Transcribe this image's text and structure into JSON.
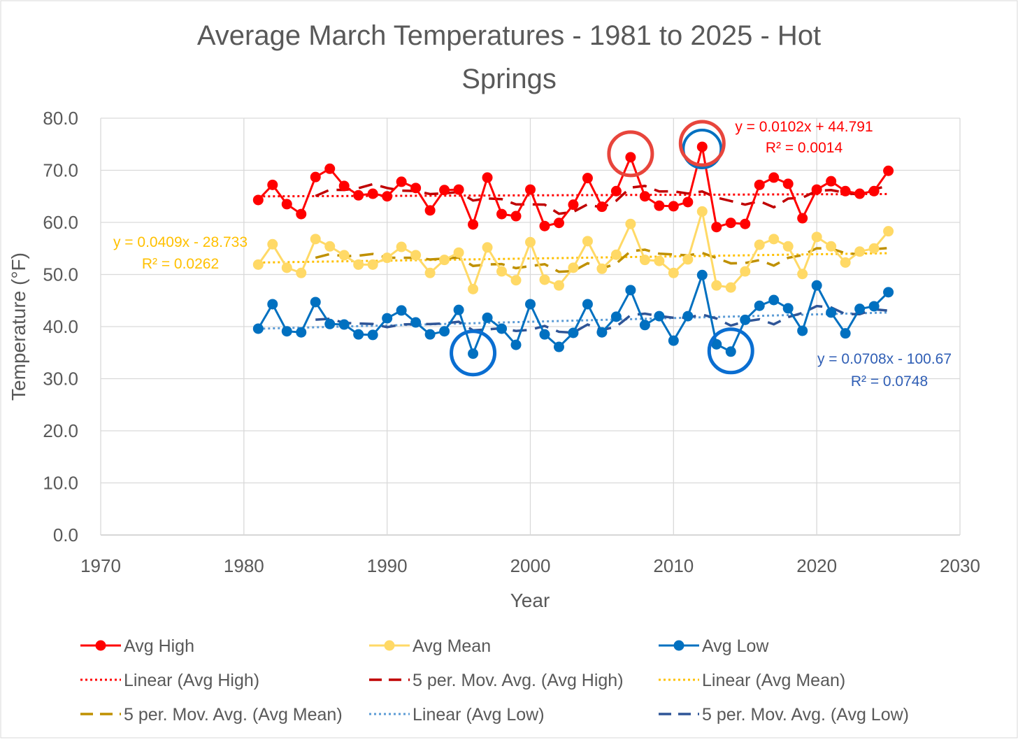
{
  "chart_data": {
    "type": "line",
    "title_line1": "Average March Temperatures - 1981 to 2025 - Hot",
    "title_line2": "Springs",
    "xlabel": "Year",
    "ylabel": "Temperature (°F)",
    "xlim": [
      1970,
      2030
    ],
    "ylim": [
      0,
      80
    ],
    "xticks": [
      1970,
      1980,
      1990,
      2000,
      2010,
      2020,
      2030
    ],
    "yticks": [
      "0.0",
      "10.0",
      "20.0",
      "30.0",
      "40.0",
      "50.0",
      "60.0",
      "70.0",
      "80.0"
    ],
    "grid": true,
    "legend_position": "bottom",
    "x": [
      1981,
      1982,
      1983,
      1984,
      1985,
      1986,
      1987,
      1988,
      1989,
      1990,
      1991,
      1992,
      1993,
      1994,
      1995,
      1996,
      1997,
      1998,
      1999,
      2000,
      2001,
      2002,
      2003,
      2004,
      2005,
      2006,
      2007,
      2008,
      2009,
      2010,
      2011,
      2012,
      2013,
      2014,
      2015,
      2016,
      2017,
      2018,
      2019,
      2020,
      2021,
      2022,
      2023,
      2024,
      2025
    ],
    "series": [
      {
        "name": "Avg High",
        "color": "#FF0000",
        "trend_color": "#FF0000",
        "ma_color": "#C00000",
        "values": [
          64.3,
          67.2,
          63.5,
          61.6,
          68.7,
          70.3,
          67.0,
          65.2,
          65.5,
          65.0,
          67.8,
          66.6,
          62.3,
          66.2,
          66.3,
          59.6,
          68.6,
          61.6,
          61.2,
          66.3,
          59.3,
          59.9,
          63.4,
          68.5,
          63.0,
          66.0,
          72.5,
          65.0,
          63.2,
          63.1,
          63.9,
          74.5,
          59.1,
          59.9,
          59.7,
          67.2,
          68.6,
          67.4,
          60.8,
          66.3,
          67.9,
          66.0,
          65.5,
          66.0,
          69.9
        ],
        "trend": {
          "slope": 0.0102,
          "intercept": 44.791,
          "equation": "y = 0.0102x + 44.791",
          "r2": "R² = 0.0014"
        }
      },
      {
        "name": "Avg Mean",
        "color": "#FFD966",
        "trend_color": "#FFC000",
        "ma_color": "#BF9000",
        "values": [
          51.9,
          55.8,
          51.3,
          50.3,
          56.8,
          55.4,
          53.7,
          51.9,
          51.9,
          53.2,
          55.3,
          53.7,
          50.3,
          52.8,
          54.2,
          47.2,
          55.2,
          50.6,
          48.9,
          56.2,
          49.0,
          47.9,
          51.3,
          56.4,
          51.1,
          53.8,
          59.7,
          52.8,
          52.6,
          50.3,
          52.9,
          62.1,
          47.9,
          47.5,
          50.6,
          55.7,
          56.8,
          55.4,
          50.1,
          57.2,
          55.4,
          52.3,
          54.4,
          55.0,
          58.3
        ],
        "trend": {
          "slope": 0.0409,
          "intercept": -28.733,
          "equation": "y = 0.0409x - 28.733",
          "r2": "R² = 0.0262"
        }
      },
      {
        "name": "Avg Low",
        "color": "#0070C0",
        "trend_color": "#5B9BD5",
        "ma_color": "#2F5597",
        "values": [
          39.6,
          44.3,
          39.1,
          38.9,
          44.7,
          40.5,
          40.4,
          38.5,
          38.4,
          41.6,
          43.1,
          40.8,
          38.5,
          39.1,
          43.2,
          34.8,
          41.7,
          39.6,
          36.5,
          44.3,
          38.5,
          36.1,
          38.8,
          44.3,
          38.9,
          41.9,
          47.0,
          40.3,
          42.0,
          37.3,
          42.0,
          49.9,
          36.6,
          35.2,
          41.3,
          44.0,
          45.1,
          43.5,
          39.2,
          47.9,
          42.7,
          38.7,
          43.4,
          43.9,
          46.6
        ],
        "trend": {
          "slope": 0.0708,
          "intercept": -100.67,
          "equation": "y = 0.0708x - 100.67",
          "r2": "R² = 0.0748"
        }
      }
    ],
    "moving_average_period": 5,
    "legend": [
      "Avg High",
      "Avg Mean",
      "Avg Low",
      "Linear (Avg High)",
      "5 per. Mov. Avg. (Avg High)",
      "Linear (Avg Mean)",
      "5 per. Mov. Avg. (Avg Mean)",
      "Linear (Avg Low)",
      "5 per. Mov. Avg. (Avg Low)"
    ],
    "annotations": [
      {
        "shape": "circle",
        "color": "#FF0000",
        "series": "Avg High",
        "x": 2007
      },
      {
        "shape": "circle",
        "color": "#FF0000",
        "series": "Avg High",
        "x": 2012
      },
      {
        "shape": "circle",
        "color": "#0070C0",
        "series": "Avg Low",
        "x": 1996
      },
      {
        "shape": "circle",
        "color": "#0070C0",
        "series": "Avg Low",
        "x": 2014
      }
    ]
  }
}
